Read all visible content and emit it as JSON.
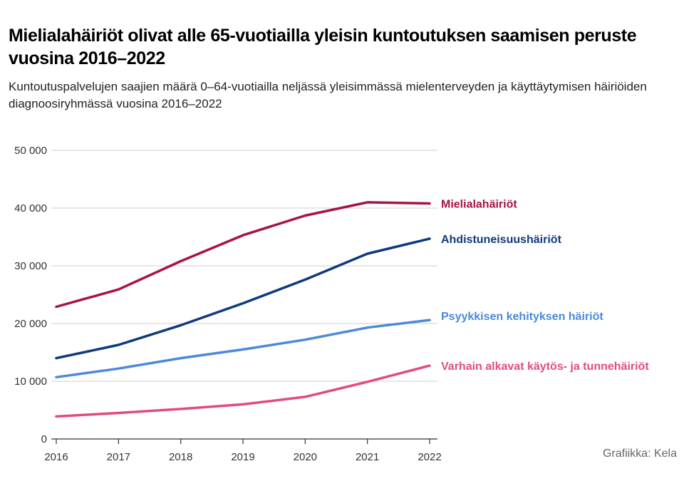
{
  "header": {
    "title": "Mielialahäiriöt olivat alle 65-vuotiailla yleisin kuntoutuksen saamisen peruste vuosina 2016–2022",
    "subtitle": "Kuntoutuspalvelujen saajien määrä 0–64-vuotiailla neljässä yleisimmässä mielenterveyden ja käyttäytymisen häiriöiden diagnoosiryhmässä vuosina 2016–2022"
  },
  "credit": "Grafiikka: Kela",
  "chart_data": {
    "type": "line",
    "title": "Mielialahäiriöt olivat alle 65-vuotiailla yleisin kuntoutuksen saamisen peruste vuosina 2016–2022",
    "subtitle": "Kuntoutuspalvelujen saajien määrä 0–64-vuotiailla neljässä yleisimmässä mielenterveyden ja käyttäytymisen häiriöiden diagnoosiryhmässä vuosina 2016–2022",
    "xlabel": "",
    "ylabel": "",
    "x": [
      "2016",
      "2017",
      "2018",
      "2019",
      "2020",
      "2021",
      "2022"
    ],
    "ylim": [
      0,
      50000
    ],
    "yticks": [
      0,
      10000,
      20000,
      30000,
      40000,
      50000
    ],
    "yticklabels": [
      "0",
      "10 000",
      "20 000",
      "30 000",
      "40 000",
      "50 000"
    ],
    "grid": true,
    "legend": "direct labels at line ends",
    "series": [
      {
        "name": "Mielialahäiriöt",
        "color": "#a8124a",
        "values": [
          22900,
          25900,
          30800,
          35300,
          38700,
          41000,
          40800
        ]
      },
      {
        "name": "Ahdistuneisuushäiriöt",
        "color": "#0d3a7e",
        "values": [
          14000,
          16300,
          19700,
          23500,
          27600,
          32100,
          34700
        ]
      },
      {
        "name": "Psyykkisen kehityksen häiriöt",
        "color": "#4b8ad8",
        "values": [
          10700,
          12200,
          14000,
          15500,
          17200,
          19300,
          20600
        ]
      },
      {
        "name": "Varhain alkavat käytös- ja tunnehäiriöt",
        "color": "#e14b82",
        "values": [
          3900,
          4500,
          5200,
          6000,
          7300,
          9900,
          12700
        ]
      }
    ]
  }
}
